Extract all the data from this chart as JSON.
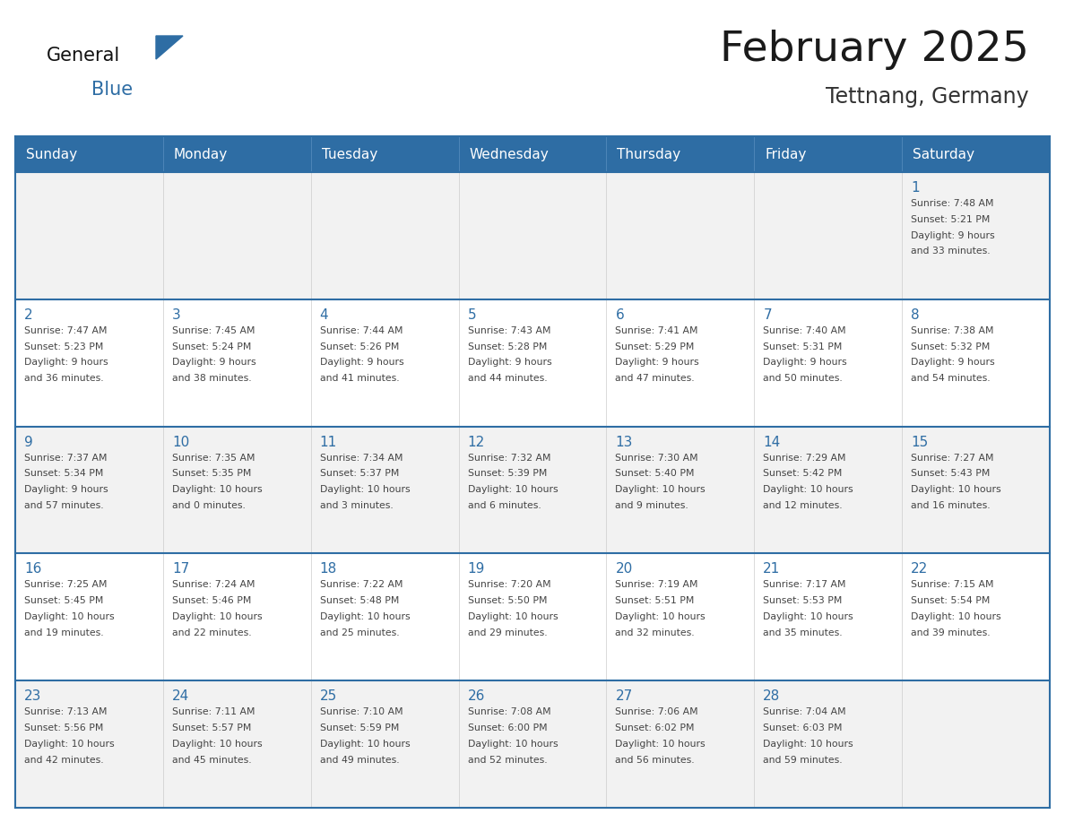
{
  "title": "February 2025",
  "subtitle": "Tettnang, Germany",
  "header_bg": "#2E6DA4",
  "header_text_color": "#FFFFFF",
  "cell_bg_light": "#F2F2F2",
  "cell_bg_white": "#FFFFFF",
  "cell_border_top_color": "#2E6DA4",
  "cell_outer_border": "#AAAAAA",
  "day_number_color": "#2E6DA4",
  "info_text_color": "#444444",
  "days_of_week": [
    "Sunday",
    "Monday",
    "Tuesday",
    "Wednesday",
    "Thursday",
    "Friday",
    "Saturday"
  ],
  "logo_general_color": "#111111",
  "logo_blue_color": "#2E6DA4",
  "weeks": [
    [
      {
        "day": null,
        "info": ""
      },
      {
        "day": null,
        "info": ""
      },
      {
        "day": null,
        "info": ""
      },
      {
        "day": null,
        "info": ""
      },
      {
        "day": null,
        "info": ""
      },
      {
        "day": null,
        "info": ""
      },
      {
        "day": 1,
        "info": "Sunrise: 7:48 AM\nSunset: 5:21 PM\nDaylight: 9 hours\nand 33 minutes."
      }
    ],
    [
      {
        "day": 2,
        "info": "Sunrise: 7:47 AM\nSunset: 5:23 PM\nDaylight: 9 hours\nand 36 minutes."
      },
      {
        "day": 3,
        "info": "Sunrise: 7:45 AM\nSunset: 5:24 PM\nDaylight: 9 hours\nand 38 minutes."
      },
      {
        "day": 4,
        "info": "Sunrise: 7:44 AM\nSunset: 5:26 PM\nDaylight: 9 hours\nand 41 minutes."
      },
      {
        "day": 5,
        "info": "Sunrise: 7:43 AM\nSunset: 5:28 PM\nDaylight: 9 hours\nand 44 minutes."
      },
      {
        "day": 6,
        "info": "Sunrise: 7:41 AM\nSunset: 5:29 PM\nDaylight: 9 hours\nand 47 minutes."
      },
      {
        "day": 7,
        "info": "Sunrise: 7:40 AM\nSunset: 5:31 PM\nDaylight: 9 hours\nand 50 minutes."
      },
      {
        "day": 8,
        "info": "Sunrise: 7:38 AM\nSunset: 5:32 PM\nDaylight: 9 hours\nand 54 minutes."
      }
    ],
    [
      {
        "day": 9,
        "info": "Sunrise: 7:37 AM\nSunset: 5:34 PM\nDaylight: 9 hours\nand 57 minutes."
      },
      {
        "day": 10,
        "info": "Sunrise: 7:35 AM\nSunset: 5:35 PM\nDaylight: 10 hours\nand 0 minutes."
      },
      {
        "day": 11,
        "info": "Sunrise: 7:34 AM\nSunset: 5:37 PM\nDaylight: 10 hours\nand 3 minutes."
      },
      {
        "day": 12,
        "info": "Sunrise: 7:32 AM\nSunset: 5:39 PM\nDaylight: 10 hours\nand 6 minutes."
      },
      {
        "day": 13,
        "info": "Sunrise: 7:30 AM\nSunset: 5:40 PM\nDaylight: 10 hours\nand 9 minutes."
      },
      {
        "day": 14,
        "info": "Sunrise: 7:29 AM\nSunset: 5:42 PM\nDaylight: 10 hours\nand 12 minutes."
      },
      {
        "day": 15,
        "info": "Sunrise: 7:27 AM\nSunset: 5:43 PM\nDaylight: 10 hours\nand 16 minutes."
      }
    ],
    [
      {
        "day": 16,
        "info": "Sunrise: 7:25 AM\nSunset: 5:45 PM\nDaylight: 10 hours\nand 19 minutes."
      },
      {
        "day": 17,
        "info": "Sunrise: 7:24 AM\nSunset: 5:46 PM\nDaylight: 10 hours\nand 22 minutes."
      },
      {
        "day": 18,
        "info": "Sunrise: 7:22 AM\nSunset: 5:48 PM\nDaylight: 10 hours\nand 25 minutes."
      },
      {
        "day": 19,
        "info": "Sunrise: 7:20 AM\nSunset: 5:50 PM\nDaylight: 10 hours\nand 29 minutes."
      },
      {
        "day": 20,
        "info": "Sunrise: 7:19 AM\nSunset: 5:51 PM\nDaylight: 10 hours\nand 32 minutes."
      },
      {
        "day": 21,
        "info": "Sunrise: 7:17 AM\nSunset: 5:53 PM\nDaylight: 10 hours\nand 35 minutes."
      },
      {
        "day": 22,
        "info": "Sunrise: 7:15 AM\nSunset: 5:54 PM\nDaylight: 10 hours\nand 39 minutes."
      }
    ],
    [
      {
        "day": 23,
        "info": "Sunrise: 7:13 AM\nSunset: 5:56 PM\nDaylight: 10 hours\nand 42 minutes."
      },
      {
        "day": 24,
        "info": "Sunrise: 7:11 AM\nSunset: 5:57 PM\nDaylight: 10 hours\nand 45 minutes."
      },
      {
        "day": 25,
        "info": "Sunrise: 7:10 AM\nSunset: 5:59 PM\nDaylight: 10 hours\nand 49 minutes."
      },
      {
        "day": 26,
        "info": "Sunrise: 7:08 AM\nSunset: 6:00 PM\nDaylight: 10 hours\nand 52 minutes."
      },
      {
        "day": 27,
        "info": "Sunrise: 7:06 AM\nSunset: 6:02 PM\nDaylight: 10 hours\nand 56 minutes."
      },
      {
        "day": 28,
        "info": "Sunrise: 7:04 AM\nSunset: 6:03 PM\nDaylight: 10 hours\nand 59 minutes."
      },
      {
        "day": null,
        "info": ""
      }
    ]
  ]
}
